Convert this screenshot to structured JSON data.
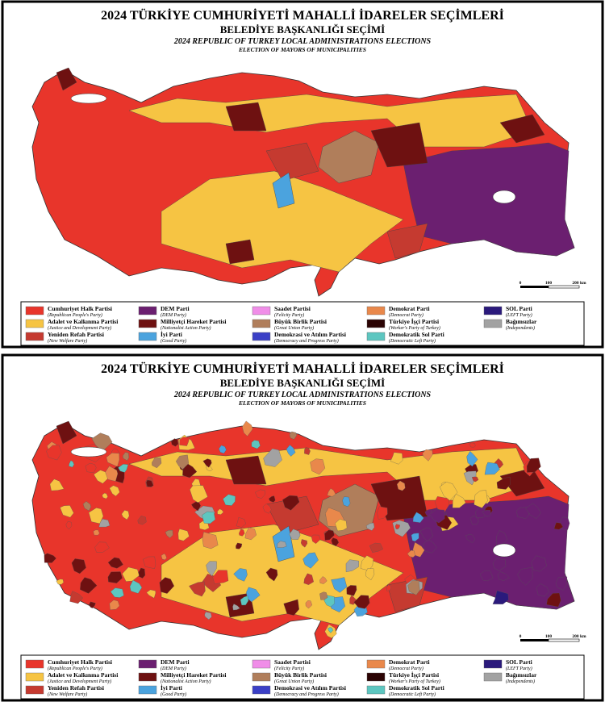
{
  "panels": [
    {
      "title": "2024 TÜRKİYE CUMHURİYETİ MAHALLİ İDARELER SEÇİMLERİ",
      "subtitle": "BELEDİYE BAŞKANLIĞI SEÇİMİ",
      "title_en": "2024 REPUBLIC OF TURKEY LOCAL ADMINISTRATIONS ELECTIONS",
      "subtitle_en": "ELECTION OF MAYORS OF MUNICIPALITIES",
      "scale": [
        "0",
        "100",
        "200 km"
      ],
      "legend": [
        {
          "name": "Cumhuriyet Halk Partisi",
          "note": "(Republican People's Party)",
          "color": "#e8352b"
        },
        {
          "name": "Adalet ve Kalkınma Partisi",
          "note": "(Justice and Development Party)",
          "color": "#f6c443"
        },
        {
          "name": "Yeniden Refah Partisi",
          "note": "(New Welfare Party)",
          "color": "#c53a30"
        },
        {
          "name": "DEM Parti",
          "note": "(DEM Party)",
          "color": "#6b1f70"
        },
        {
          "name": "Milliyetçi Hareket Partisi",
          "note": "(Nationalist Action Party)",
          "color": "#6e1111"
        },
        {
          "name": "İyi Parti",
          "note": "(Good Party)",
          "color": "#4ba3de"
        },
        {
          "name": "Saadet Partisi",
          "note": "(Felicity Party)",
          "color": "#f08de8"
        },
        {
          "name": "Büyük Birlik Partisi",
          "note": "(Great Union Party)",
          "color": "#b07e5b"
        },
        {
          "name": "Demokrasi ve Atılım Partisi",
          "note": "(Democracy and Progress Party)",
          "color": "#3b40c6"
        },
        {
          "name": "Demokrat Parti",
          "note": "(Democrat Party)",
          "color": "#e9884b"
        },
        {
          "name": "Türkiye İşçi Partisi",
          "note": "(Worker's Party of Turkey)",
          "color": "#2b0303"
        },
        {
          "name": "Demokratik Sol Parti",
          "note": "(Democratic Left Party)",
          "color": "#5dc6c0"
        },
        {
          "name": "SOL Parti",
          "note": "(LEFT Party)",
          "color": "#2b1a7c"
        },
        {
          "name": "Bağımsızlar",
          "note": "(Independents)",
          "color": "#a2a2a2"
        }
      ]
    },
    {
      "title": "2024 TÜRKİYE CUMHURİYETİ MAHALLİ İDARELER SEÇİMLERİ",
      "subtitle": "BELEDİYE BAŞKANLIĞI SEÇİMİ",
      "title_en": "2024 REPUBLIC OF TURKEY LOCAL ADMINISTRATIONS ELECTIONS",
      "subtitle_en": "ELECTION OF MAYORS OF MUNICIPALITIES",
      "scale": [
        "0",
        "100",
        "200 km"
      ],
      "legend": [
        {
          "name": "Cumhuriyet Halk Partisi",
          "note": "(Republican People's Party)",
          "color": "#e8352b"
        },
        {
          "name": "Adalet ve Kalkınma Partisi",
          "note": "(Justice and Development Party)",
          "color": "#f6c443"
        },
        {
          "name": "Yeniden Refah Partisi",
          "note": "(New Welfare Party)",
          "color": "#c53a30"
        },
        {
          "name": "DEM Parti",
          "note": "(DEM Party)",
          "color": "#6b1f70"
        },
        {
          "name": "Milliyetçi Hareket Partisi",
          "note": "(Nationalist Action Party)",
          "color": "#6e1111"
        },
        {
          "name": "İyi Parti",
          "note": "(Good Party)",
          "color": "#4ba3de"
        },
        {
          "name": "Saadet Partisi",
          "note": "(Felicity Party)",
          "color": "#f08de8"
        },
        {
          "name": "Büyük Birlik Partisi",
          "note": "(Great Union Party)",
          "color": "#b07e5b"
        },
        {
          "name": "Demokrasi ve Atılım Partisi",
          "note": "(Democracy and Progress Party)",
          "color": "#3b40c6"
        },
        {
          "name": "Demokrat Parti",
          "note": "(Democrat Party)",
          "color": "#e9884b"
        },
        {
          "name": "Türkiye İşçi Partisi",
          "note": "(Worker's Party of Turkey)",
          "color": "#2b0303"
        },
        {
          "name": "Demokratik Sol Parti",
          "note": "(Democratic Left Party)",
          "color": "#5dc6c0"
        },
        {
          "name": "SOL Parti",
          "note": "(LEFT Party)",
          "color": "#2b1a7c"
        },
        {
          "name": "Bağımsızlar",
          "note": "(Independents)",
          "color": "#a2a2a2"
        }
      ]
    }
  ]
}
